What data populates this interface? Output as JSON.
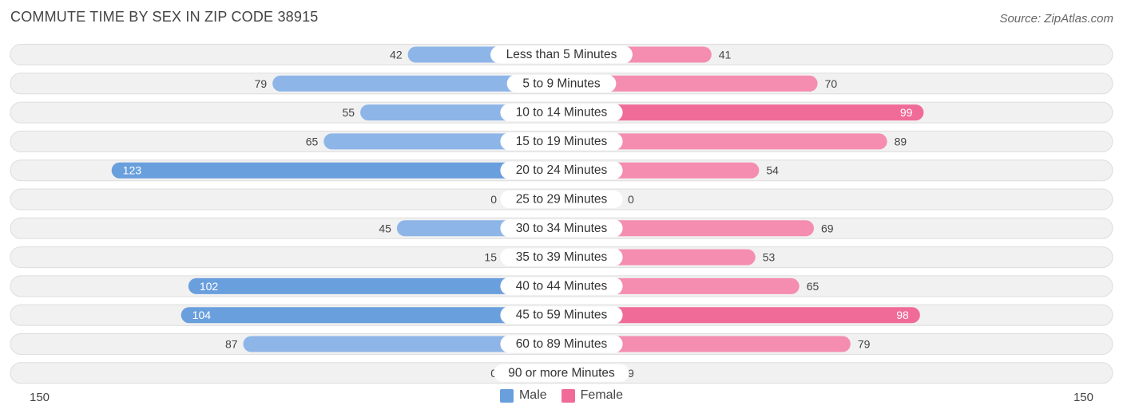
{
  "title": "COMMUTE TIME BY SEX IN ZIP CODE 38915",
  "source": "Source: ZipAtlas.com",
  "axis": {
    "left_label": "150",
    "right_label": "150"
  },
  "legend": [
    {
      "label": "Male",
      "color": "#6a9fdd"
    },
    {
      "label": "Female",
      "color": "#f06b97"
    }
  ],
  "chart_data": {
    "type": "bar",
    "orientation": "horizontal-diverging",
    "title": "COMMUTE TIME BY SEX IN ZIP CODE 38915",
    "categories": [
      "Less than 5 Minutes",
      "5 to 9 Minutes",
      "10 to 14 Minutes",
      "15 to 19 Minutes",
      "20 to 24 Minutes",
      "25 to 29 Minutes",
      "30 to 34 Minutes",
      "35 to 39 Minutes",
      "40 to 44 Minutes",
      "45 to 59 Minutes",
      "60 to 89 Minutes",
      "90 or more Minutes"
    ],
    "series": [
      {
        "name": "Male",
        "values": [
          42,
          79,
          55,
          65,
          123,
          0,
          45,
          15,
          102,
          104,
          87,
          0
        ]
      },
      {
        "name": "Female",
        "values": [
          41,
          70,
          99,
          89,
          54,
          0,
          69,
          53,
          65,
          98,
          79,
          9
        ]
      }
    ],
    "xlim": [
      -150,
      150
    ],
    "legend_position": "bottom-center",
    "colors": {
      "male": "#6a9fdd",
      "female": "#f06b97",
      "male_light": "#a9c8ef",
      "female_light": "#f7a8c2"
    }
  }
}
